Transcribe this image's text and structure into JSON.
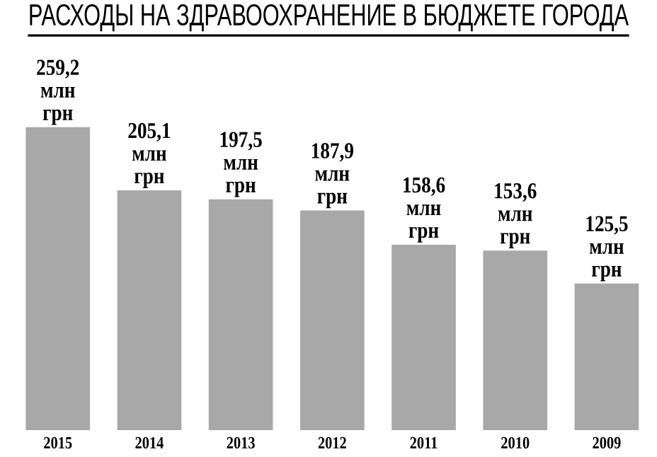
{
  "chart_data": {
    "type": "bar",
    "title": "РАСХОДЫ НА ЗДРАВООХРАНЕНИЕ В БЮДЖЕТЕ ГОРОДА",
    "categories": [
      "2015",
      "2014",
      "2013",
      "2012",
      "2011",
      "2010",
      "2009"
    ],
    "values": [
      259.2,
      205.1,
      197.5,
      187.9,
      158.6,
      153.6,
      125.5
    ],
    "value_labels": [
      "259,2 млн грн",
      "205,1 млн грн",
      "197,5 млн грн",
      "187,9 млн грн",
      "158,6 млн грн",
      "153,6 млн грн",
      "125,5 млн грн"
    ],
    "color": "#a8a8a8"
  }
}
